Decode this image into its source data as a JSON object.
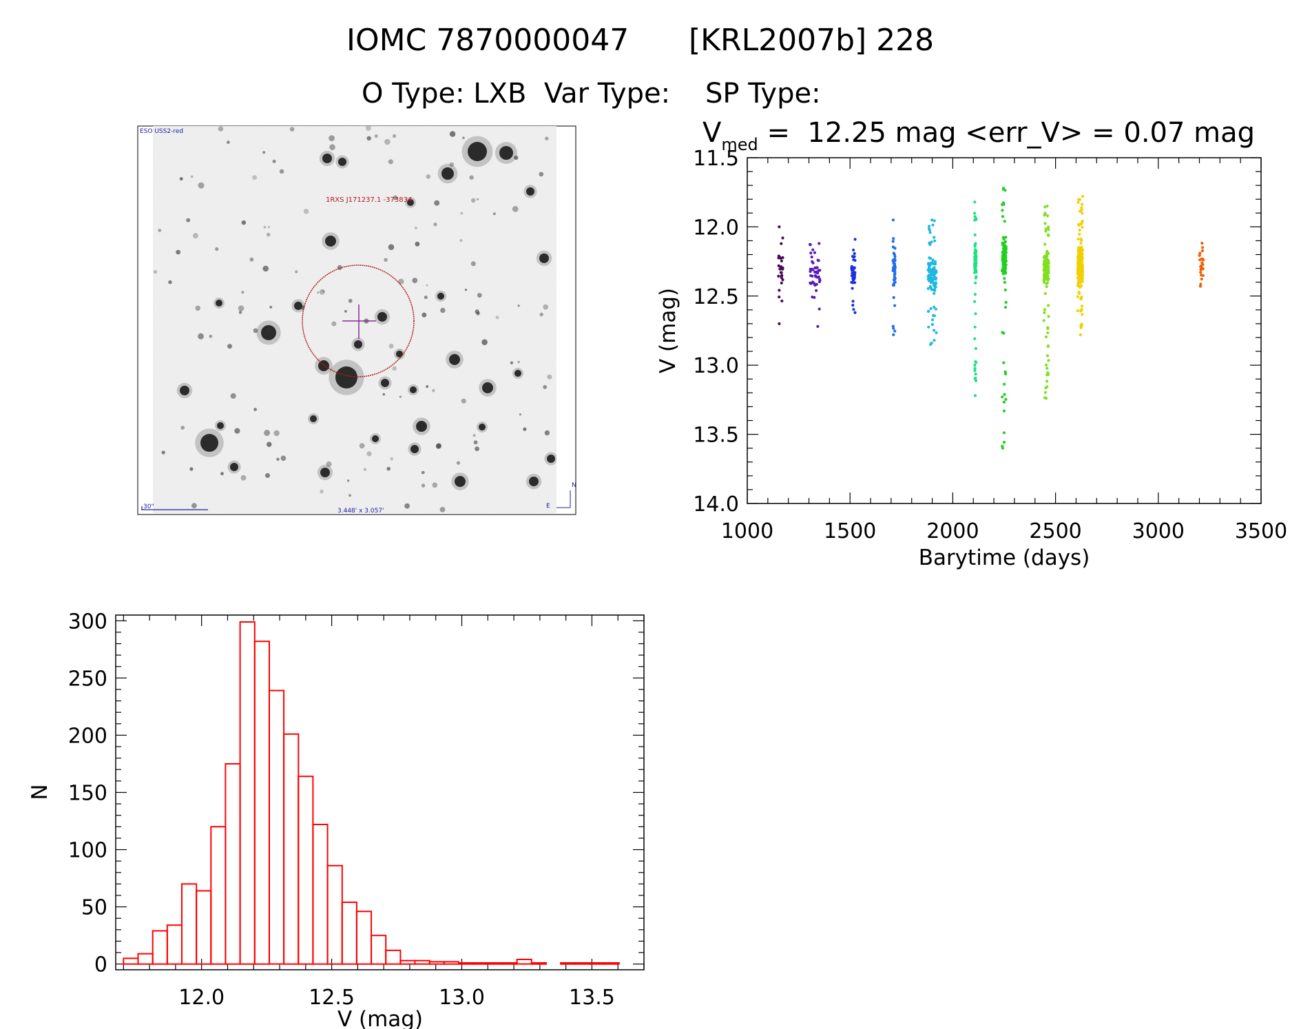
{
  "header": {
    "line1_left": "IOMC 7870000047",
    "line1_right": "[KRL2007b] 228",
    "line2": "O Type: LXB  Var Type:    SP Type:"
  },
  "finder": {
    "survey_label": "ESO USS2-red",
    "target_label": "1RXS J171237.1 -373834",
    "scale_label": "30\"",
    "fov_label": "3.448' x 3.057'",
    "compass_n": "N",
    "compass_e": "E",
    "colors": {
      "circle": "#b01818",
      "cross": "#8a2a9a",
      "labels": "#1a1aa8"
    }
  },
  "lightcurve": {
    "stat_prefix": "V",
    "stat_sub": "med",
    "stat_rest": " =  12.25 mag <err_V> = 0.07 mag"
  },
  "chart_data": [
    {
      "type": "scatter",
      "xlabel": "Barytime (days)",
      "ylabel": "V (mag)",
      "xlim": [
        1000,
        3500
      ],
      "ylim": [
        11.5,
        14.0
      ],
      "y_inverted": true,
      "xticks": [
        "1000",
        "1500",
        "2000",
        "2500",
        "3000",
        "3500"
      ],
      "yticks": [
        "11.5",
        "12.0",
        "12.5",
        "13.0",
        "13.5",
        "14.0"
      ],
      "groups": [
        {
          "x": 1160,
          "w": 30,
          "y_min": 12.0,
          "y_max": 12.7,
          "center": 12.27,
          "n": 30,
          "color": "#4a0858"
        },
        {
          "x": 1330,
          "w": 50,
          "y_min": 12.12,
          "y_max": 12.72,
          "center": 12.36,
          "n": 45,
          "color": "#5a1ab8"
        },
        {
          "x": 1515,
          "w": 20,
          "y_min": 12.09,
          "y_max": 12.62,
          "center": 12.32,
          "n": 45,
          "color": "#1a32e0"
        },
        {
          "x": 1715,
          "w": 12,
          "y_min": 11.95,
          "y_max": 12.78,
          "center": 12.3,
          "n": 50,
          "color": "#1f6fe8"
        },
        {
          "x": 1900,
          "w": 40,
          "y_min": 11.95,
          "y_max": 12.85,
          "center": 12.35,
          "n": 120,
          "color": "#20b8e0"
        },
        {
          "x": 2110,
          "w": 8,
          "y_min": 11.82,
          "y_max": 13.22,
          "center": 12.25,
          "n": 80,
          "color": "#20e080"
        },
        {
          "x": 2250,
          "w": 20,
          "y_min": 11.72,
          "y_max": 13.6,
          "center": 12.2,
          "n": 110,
          "color": "#20d020"
        },
        {
          "x": 2455,
          "w": 24,
          "y_min": 11.85,
          "y_max": 13.24,
          "center": 12.3,
          "n": 170,
          "color": "#80e020"
        },
        {
          "x": 2620,
          "w": 24,
          "y_min": 11.78,
          "y_max": 12.78,
          "center": 12.28,
          "n": 220,
          "color": "#f0d000"
        },
        {
          "x": 3210,
          "w": 20,
          "y_min": 12.15,
          "y_max": 12.43,
          "center": 12.27,
          "n": 25,
          "color": "#f06000"
        }
      ]
    },
    {
      "type": "bar",
      "subtype": "histogram",
      "xlabel": "V (mag)",
      "ylabel": "N",
      "xlim": [
        11.67,
        13.7
      ],
      "ylim": [
        -5,
        305
      ],
      "xticks": [
        "12.0",
        "12.5",
        "13.0",
        "13.5"
      ],
      "yticks": [
        "0",
        "50",
        "100",
        "150",
        "200",
        "250",
        "300"
      ],
      "color": "#ff0000",
      "bin_start": 11.7,
      "bin_width": 0.056,
      "counts": [
        5,
        9,
        29,
        34,
        70,
        64,
        120,
        175,
        299,
        282,
        239,
        201,
        164,
        122,
        86,
        54,
        46,
        25,
        12,
        3,
        3,
        2,
        2,
        1,
        1,
        1,
        1,
        4,
        1,
        0,
        1,
        1,
        1,
        1
      ]
    }
  ]
}
